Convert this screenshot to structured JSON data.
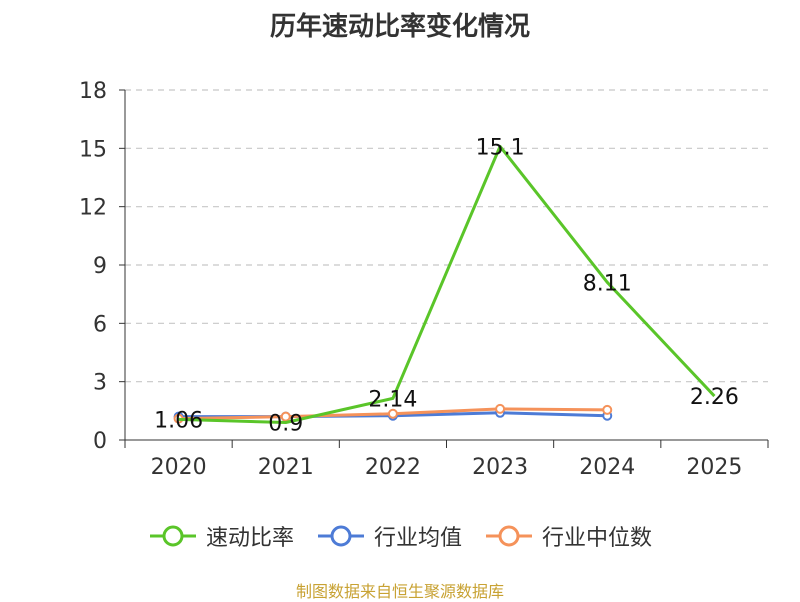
{
  "chart_data": {
    "type": "line",
    "title": "历年速动比率变化情况",
    "categories": [
      "2020",
      "2021",
      "2022",
      "2023",
      "2024",
      "2025"
    ],
    "yticks": [
      "0",
      "3",
      "6",
      "9",
      "12",
      "15",
      "18"
    ],
    "ylim": [
      0,
      18
    ],
    "grid": true,
    "legend_position": "bottom",
    "series": [
      {
        "name": "速动比率",
        "color": "#5ac529",
        "values": [
          1.06,
          0.9,
          2.14,
          15.1,
          8.11,
          2.26
        ],
        "labels": [
          "1.06",
          "0.9",
          "2.14",
          "15.1",
          "8.11",
          "2.26"
        ],
        "show_markers": false
      },
      {
        "name": "行业均值",
        "color": "#4d7bd6",
        "values": [
          1.2,
          1.2,
          1.25,
          1.4,
          1.25,
          null
        ],
        "show_markers": true
      },
      {
        "name": "行业中位数",
        "color": "#f5925a",
        "values": [
          1.1,
          1.2,
          1.35,
          1.6,
          1.55,
          null
        ],
        "show_markers": true
      }
    ]
  },
  "footer": {
    "source": "制图数据来自恒生聚源数据库"
  }
}
